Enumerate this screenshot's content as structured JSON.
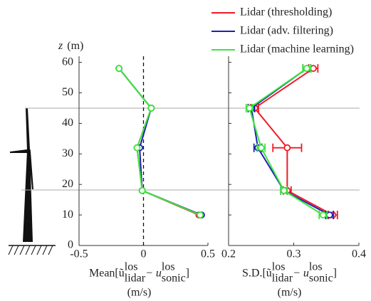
{
  "chart_data": [
    {
      "type": "profile",
      "ylabel_var": "z",
      "ylabel_unit": "(m)",
      "xlabel": [
        "Mean[ũ",
        "lidar",
        "los",
        " − u",
        "sonic",
        "los",
        "]"
      ],
      "xlabel_unit": "(m/s)",
      "y": [
        58,
        45,
        32,
        18,
        10
      ],
      "xlim": [
        -0.5,
        0.5
      ],
      "xticks": [
        -0.5,
        0,
        0.5
      ],
      "ylim": [
        0,
        62
      ],
      "yticks": [
        0,
        10,
        20,
        30,
        40,
        50,
        60
      ],
      "series": [
        {
          "name": "Lidar (thresholding)",
          "color": "#ee1c25",
          "values": [
            -0.19,
            0.06,
            -0.05,
            -0.01,
            0.43
          ]
        },
        {
          "name": "Lidar (adv. filtering)",
          "color": "#1f1fb4",
          "values": [
            -0.19,
            0.06,
            -0.03,
            -0.01,
            0.45
          ]
        },
        {
          "name": "Lidar (machine learning)",
          "color": "#3ce63c",
          "values": [
            -0.19,
            0.06,
            -0.05,
            -0.01,
            0.44
          ]
        }
      ]
    },
    {
      "type": "profile",
      "xlabel": [
        "S.D.[ũ",
        "lidar",
        "los",
        " − u",
        "sonic",
        "los",
        "]"
      ],
      "xlabel_unit": "(m/s)",
      "y": [
        58,
        45,
        32,
        18,
        10
      ],
      "xlim": [
        0.2,
        0.4
      ],
      "xticks": [
        0.2,
        0.3,
        0.4
      ],
      "ylim": [
        0,
        62
      ],
      "yticks": [
        0,
        10,
        20,
        30,
        40,
        50,
        60
      ],
      "series": [
        {
          "color": "#ee1c25",
          "values": [
            0.33,
            0.24,
            0.29,
            0.29,
            0.36
          ],
          "errors": [
            0.007,
            0.006,
            0.022,
            0.006,
            0.007
          ]
        },
        {
          "color": "#1f1fb4",
          "values": [
            0.32,
            0.235,
            0.245,
            0.285,
            0.355
          ],
          "errors": [
            0.006,
            0.005,
            0.006,
            0.005,
            0.006
          ]
        },
        {
          "color": "#3ce63c",
          "values": [
            0.32,
            0.232,
            0.25,
            0.285,
            0.345
          ],
          "errors": [
            0.006,
            0.005,
            0.006,
            0.005,
            0.006
          ]
        }
      ]
    }
  ]
}
